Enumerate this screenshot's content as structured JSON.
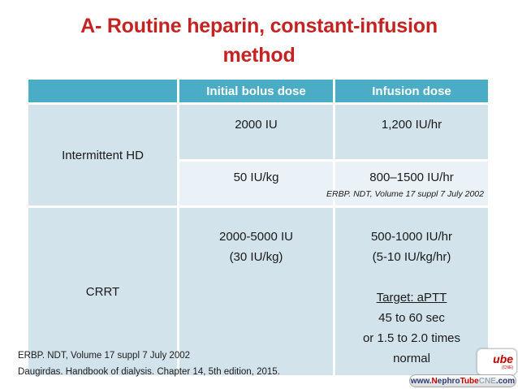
{
  "title": {
    "line1": "A- Routine heparin, constant-infusion",
    "line2": "method"
  },
  "table": {
    "headers": [
      "",
      "Initial bolus dose",
      "Infusion dose"
    ],
    "rows": {
      "intermittent_hd": {
        "label": "Intermittent HD",
        "row1": {
          "bolus": "2000 IU",
          "infusion": "1,200 IU/hr"
        },
        "row2": {
          "bolus": "50 IU/kg",
          "infusion": "800–1500 IU/hr"
        },
        "citation": "ERBP. NDT, Volume 17 suppl 7 July 2002"
      },
      "crrt": {
        "label": "CRRT",
        "bolus_line1": "2000-5000 IU",
        "bolus_line2": "(30 IU/kg)",
        "infusion_line1": "500-1000 IU/hr",
        "infusion_line2": "(5-10 IU/kg/hr)",
        "target_heading": "Target: aPTT",
        "target_line1": "45 to 60 sec",
        "target_line2": "or 1.5 to 2.0 times",
        "target_line3": "normal"
      }
    }
  },
  "footnotes": {
    "line1": "ERBP. NDT, Volume 17 suppl 7 July 2002",
    "line2": "Daugirdas. Handbook of dialysis. Chapter 14, 5th edition, 2015."
  },
  "logo": {
    "fragment": "ube",
    "subtext": "(CNE)",
    "url": {
      "p1": "www.",
      "p2": "N",
      "p3": "ephro",
      "p4": "Tube",
      "p5": "CNE",
      "p6": ".com"
    }
  },
  "colors": {
    "title_red": "#C32423",
    "header_teal": "#4AACC5",
    "band_dark": "#D2E3EC",
    "band_light": "#EAF2F7",
    "logo_red": "#C00000"
  }
}
